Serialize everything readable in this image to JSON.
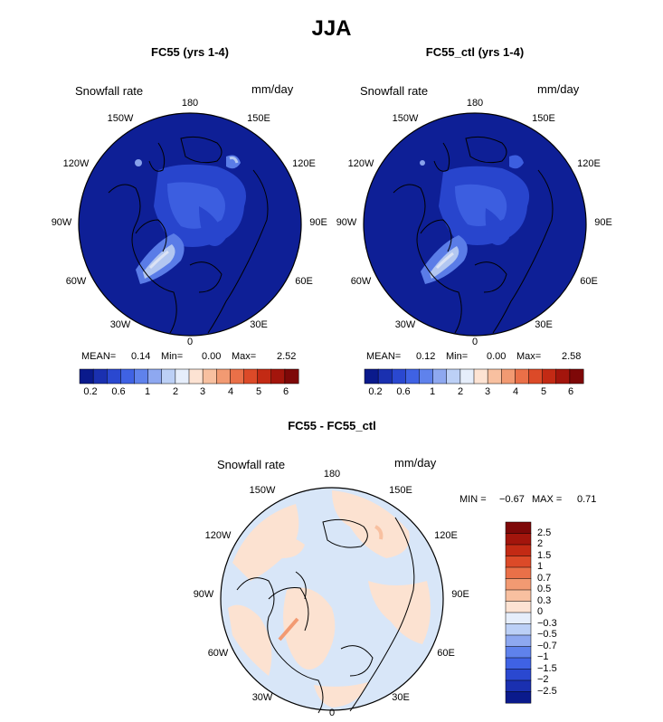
{
  "figure_title": "JJA",
  "panels": [
    {
      "id": "fc55",
      "title": "FC55 (yrs 1-4)",
      "variable": "Snowfall rate",
      "units": "mm/day",
      "lon_labels": [
        "180",
        "150E",
        "120E",
        "90E",
        "60E",
        "30E",
        "0",
        "30W",
        "60W",
        "90W",
        "120W",
        "150W"
      ],
      "stats": {
        "mean_label": "MEAN=",
        "mean": "0.14",
        "min_label": "Min=",
        "min": "0.00",
        "max_label": "Max=",
        "max": "2.52"
      },
      "colorbar_ticks": [
        "0.2",
        "0.6",
        "1",
        "2",
        "3",
        "4",
        "5",
        "6"
      ]
    },
    {
      "id": "fc55_ctl",
      "title": "FC55_ctl (yrs 1-4)",
      "variable": "Snowfall rate",
      "units": "mm/day",
      "lon_labels": [
        "180",
        "150E",
        "120E",
        "90E",
        "60E",
        "30E",
        "0",
        "30W",
        "60W",
        "90W",
        "120W",
        "150W"
      ],
      "stats": {
        "mean_label": "MEAN=",
        "mean": "0.12",
        "min_label": "Min=",
        "min": "0.00",
        "max_label": "Max=",
        "max": "2.58"
      },
      "colorbar_ticks": [
        "0.2",
        "0.6",
        "1",
        "2",
        "3",
        "4",
        "5",
        "6"
      ]
    }
  ],
  "diff_panel": {
    "title": "FC55 - FC55_ctl",
    "variable": "Snowfall rate",
    "units": "mm/day",
    "lon_labels": [
      "180",
      "150E",
      "120E",
      "90E",
      "60E",
      "30E",
      "0",
      "30W",
      "60W",
      "90W",
      "120W",
      "150W"
    ],
    "stats": {
      "min_label": "MIN =",
      "min": "−0.67",
      "max_label": "MAX =",
      "max": "0.71"
    },
    "colorbar_labels": [
      "2.5",
      "2",
      "1.5",
      "1",
      "0.7",
      "0.5",
      "0.3",
      "0",
      "−0.3",
      "−0.5",
      "−0.7",
      "−1",
      "−1.5",
      "−2",
      "−2.5"
    ]
  },
  "colors": {
    "abs_scale": [
      "#0a1a8c",
      "#1a30b0",
      "#2a48d0",
      "#3f62e4",
      "#5f82ec",
      "#8ea8f0",
      "#bcd0f6",
      "#e6eefb",
      "#fde3d3",
      "#f8c0a0",
      "#f29a72",
      "#ea7048",
      "#dc4a28",
      "#c32a14",
      "#a3150c",
      "#7e0808"
    ],
    "diff_scale": [
      "#7e0808",
      "#a3150c",
      "#c32a14",
      "#dc4a28",
      "#ea7048",
      "#f29a72",
      "#f8c0a0",
      "#fde3d3",
      "#e6eefb",
      "#bcd0f6",
      "#8ea8f0",
      "#5f82ec",
      "#3f62e4",
      "#2a48d0",
      "#1a30b0",
      "#0a1a8c"
    ],
    "map_ocean_dark": "#0e1f96",
    "map_diff_neutral": "#f0f4f9",
    "map_diff_pos": "#fce2d1",
    "map_diff_neg": "#d8e6f8"
  }
}
